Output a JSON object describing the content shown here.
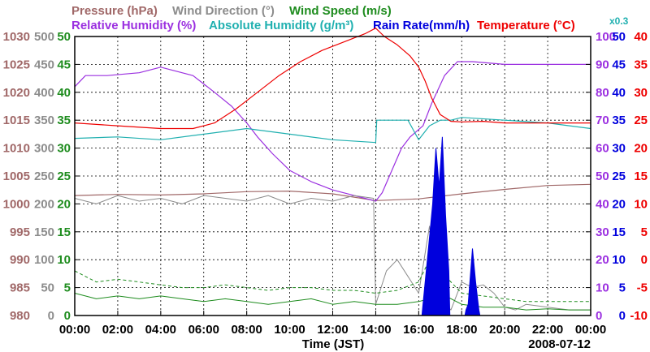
{
  "chart_data": {
    "type": "line",
    "date": "2008-07-12",
    "xlabel": "Time (JST)",
    "x_ticks": [
      "00:00",
      "02:00",
      "04:00",
      "06:00",
      "08:00",
      "10:00",
      "12:00",
      "14:00",
      "16:00",
      "18:00",
      "20:00",
      "22:00",
      "00:00"
    ],
    "xlim": [
      0,
      24
    ],
    "colors": {
      "pressure": "#a06868",
      "wind_direction": "#8c8c8c",
      "wind_speed": "#1e8c1e",
      "humidity": "#9b30e0",
      "abs_humidity": "#20b0b0",
      "rain": "#0000dd",
      "temperature": "#ee0000",
      "grid": "#000000"
    },
    "legend": {
      "pressure": "Pressure (hPa)",
      "wind_direction": "Wind Direction (°)",
      "wind_speed": "Wind Speed (m/s)",
      "humidity": "Relative Humidity (%)",
      "abs_humidity": "Absolute Humidity (g/m³)",
      "rain": "Rain Rate(mm/h)",
      "temperature": "Temperature (°C)",
      "abs_scale": "x0.3"
    },
    "axes": {
      "pressure": {
        "ylim": [
          980,
          1030
        ],
        "ticks": [
          "1030",
          "1025",
          "1020",
          "1015",
          "1010",
          "1005",
          "1000",
          "995",
          "990",
          "985",
          "980"
        ]
      },
      "wind_direction": {
        "ylim": [
          0,
          500
        ],
        "ticks": [
          "500",
          "450",
          "400",
          "350",
          "300",
          "250",
          "200",
          "150",
          "100",
          "50",
          "0"
        ]
      },
      "wind_speed": {
        "ylim": [
          0,
          50
        ],
        "ticks": [
          "50",
          "45",
          "40",
          "35",
          "30",
          "25",
          "20",
          "15",
          "10",
          "5",
          "0"
        ]
      },
      "humidity": {
        "ylim": [
          0,
          100
        ],
        "ticks": [
          "100",
          "90",
          "80",
          "70",
          "60",
          "50",
          "40",
          "30",
          "20",
          "10",
          "0"
        ]
      },
      "rain": {
        "ylim": [
          0,
          50
        ],
        "ticks": [
          "50",
          "45",
          "40",
          "35",
          "30",
          "25",
          "20",
          "15",
          "10",
          "5",
          "0"
        ]
      },
      "temperature": {
        "ylim": [
          -10,
          40
        ],
        "ticks": [
          "40",
          "35",
          "30",
          "25",
          "20",
          "15",
          "10",
          "5",
          "0",
          "-5",
          "-10"
        ]
      }
    },
    "series": [
      {
        "name": "Pressure",
        "axis": "pressure",
        "x": [
          0,
          2,
          4,
          6,
          8,
          10,
          12,
          13,
          14,
          16,
          18,
          20,
          22,
          24
        ],
        "y": [
          1001.5,
          1001.7,
          1001.6,
          1001.8,
          1002.2,
          1002.3,
          1001.8,
          1001.2,
          1000.6,
          1000.9,
          1001.8,
          1002.6,
          1003.3,
          1003.5
        ]
      },
      {
        "name": "Relative Humidity",
        "axis": "humidity",
        "x": [
          0,
          0.5,
          1.5,
          3,
          4,
          5.5,
          6.5,
          7.3,
          8,
          8.5,
          9.2,
          10,
          11,
          12,
          13,
          14,
          14.3,
          15.2,
          15.6,
          16.2,
          16.6,
          17.2,
          17.8,
          18.5,
          20,
          22,
          24
        ],
        "y": [
          82,
          86,
          86,
          87,
          89,
          86,
          80,
          75,
          69,
          64,
          58,
          52,
          48,
          45,
          43,
          41,
          44,
          60,
          64,
          68,
          76,
          86,
          91,
          91,
          90,
          90,
          90
        ]
      },
      {
        "name": "Absolute Humidity",
        "axis": "humidity",
        "x": [
          0,
          2,
          4,
          6,
          8,
          10,
          12,
          14,
          14.05,
          15.5,
          16,
          16.5,
          17,
          17.5,
          18,
          20,
          22,
          24
        ],
        "y": [
          63.5,
          64,
          63,
          65,
          67,
          65,
          63,
          62,
          70,
          70,
          63,
          68,
          70,
          70,
          71,
          70,
          69,
          67
        ]
      },
      {
        "name": "Temperature",
        "axis": "temperature",
        "x": [
          0,
          2,
          4,
          5.5,
          6.5,
          7.5,
          8.5,
          9.5,
          10.5,
          11.5,
          12.5,
          13.5,
          14,
          14.4,
          15,
          15.6,
          16,
          16.3,
          16.6,
          17,
          17.5,
          18,
          19,
          20,
          22,
          24
        ],
        "y": [
          24.5,
          24,
          23.5,
          23.5,
          24.5,
          27,
          30,
          33,
          35.5,
          37.5,
          39,
          40.5,
          41.5,
          40,
          38.5,
          36.5,
          34.5,
          32,
          29,
          26,
          24.8,
          24.7,
          24.8,
          24.5,
          24.5,
          24.5
        ]
      },
      {
        "name": "Wind Direction",
        "axis": "wind_direction",
        "x": [
          0,
          1,
          2,
          3,
          4,
          5,
          6,
          7,
          8,
          9,
          10,
          11,
          12,
          13,
          13.9,
          14,
          14.5,
          15,
          15.5,
          16,
          16.5,
          17,
          17.5,
          18,
          18.5,
          19,
          19.5,
          20,
          20.5,
          21,
          22,
          23,
          24
        ],
        "y": [
          210,
          200,
          215,
          205,
          210,
          200,
          215,
          210,
          205,
          215,
          200,
          210,
          205,
          215,
          210,
          20,
          80,
          100,
          70,
          40,
          160,
          30,
          10,
          60,
          50,
          55,
          40,
          15,
          10,
          20,
          15,
          10,
          10
        ]
      },
      {
        "name": "Wind Speed",
        "axis": "wind_speed",
        "x": [
          0,
          1,
          2,
          3,
          4,
          5,
          6,
          7,
          8,
          9,
          10,
          11,
          12,
          13,
          14,
          15,
          16,
          16.5,
          17,
          18,
          19,
          20,
          21,
          22,
          23,
          24
        ],
        "y": [
          4,
          3,
          3.5,
          3,
          3.5,
          3,
          2.5,
          3,
          2.5,
          2,
          2.5,
          3,
          2,
          2.5,
          2,
          2,
          2.5,
          3,
          4,
          2,
          1.5,
          1.5,
          1,
          1.2,
          1,
          1
        ]
      },
      {
        "name": "Wind Speed Gust",
        "axis": "wind_speed",
        "x": [
          0,
          1,
          2,
          3,
          4,
          5,
          6,
          7,
          8,
          9,
          10,
          11,
          12,
          13,
          14,
          15,
          16,
          16.5,
          17,
          18,
          19,
          20,
          21,
          22,
          23,
          24
        ],
        "y": [
          8,
          6,
          6.5,
          6,
          5.5,
          5,
          5,
          5.5,
          5,
          4.5,
          5,
          5,
          4.5,
          4.5,
          4,
          4.5,
          6,
          10,
          8,
          4,
          3.5,
          3,
          2.5,
          2.5,
          2.5,
          2.5
        ]
      }
    ],
    "rain_rate": {
      "name": "Rain Rate",
      "axis": "rain",
      "x": [
        16.2,
        16.35,
        16.5,
        16.65,
        16.8,
        16.95,
        17.1,
        17.25,
        17.4,
        18.2,
        18.3,
        18.5,
        18.65,
        18.8
      ],
      "y": [
        2,
        8,
        14,
        20,
        30,
        23,
        32,
        18,
        8,
        1,
        2,
        12,
        6,
        1
      ]
    }
  }
}
